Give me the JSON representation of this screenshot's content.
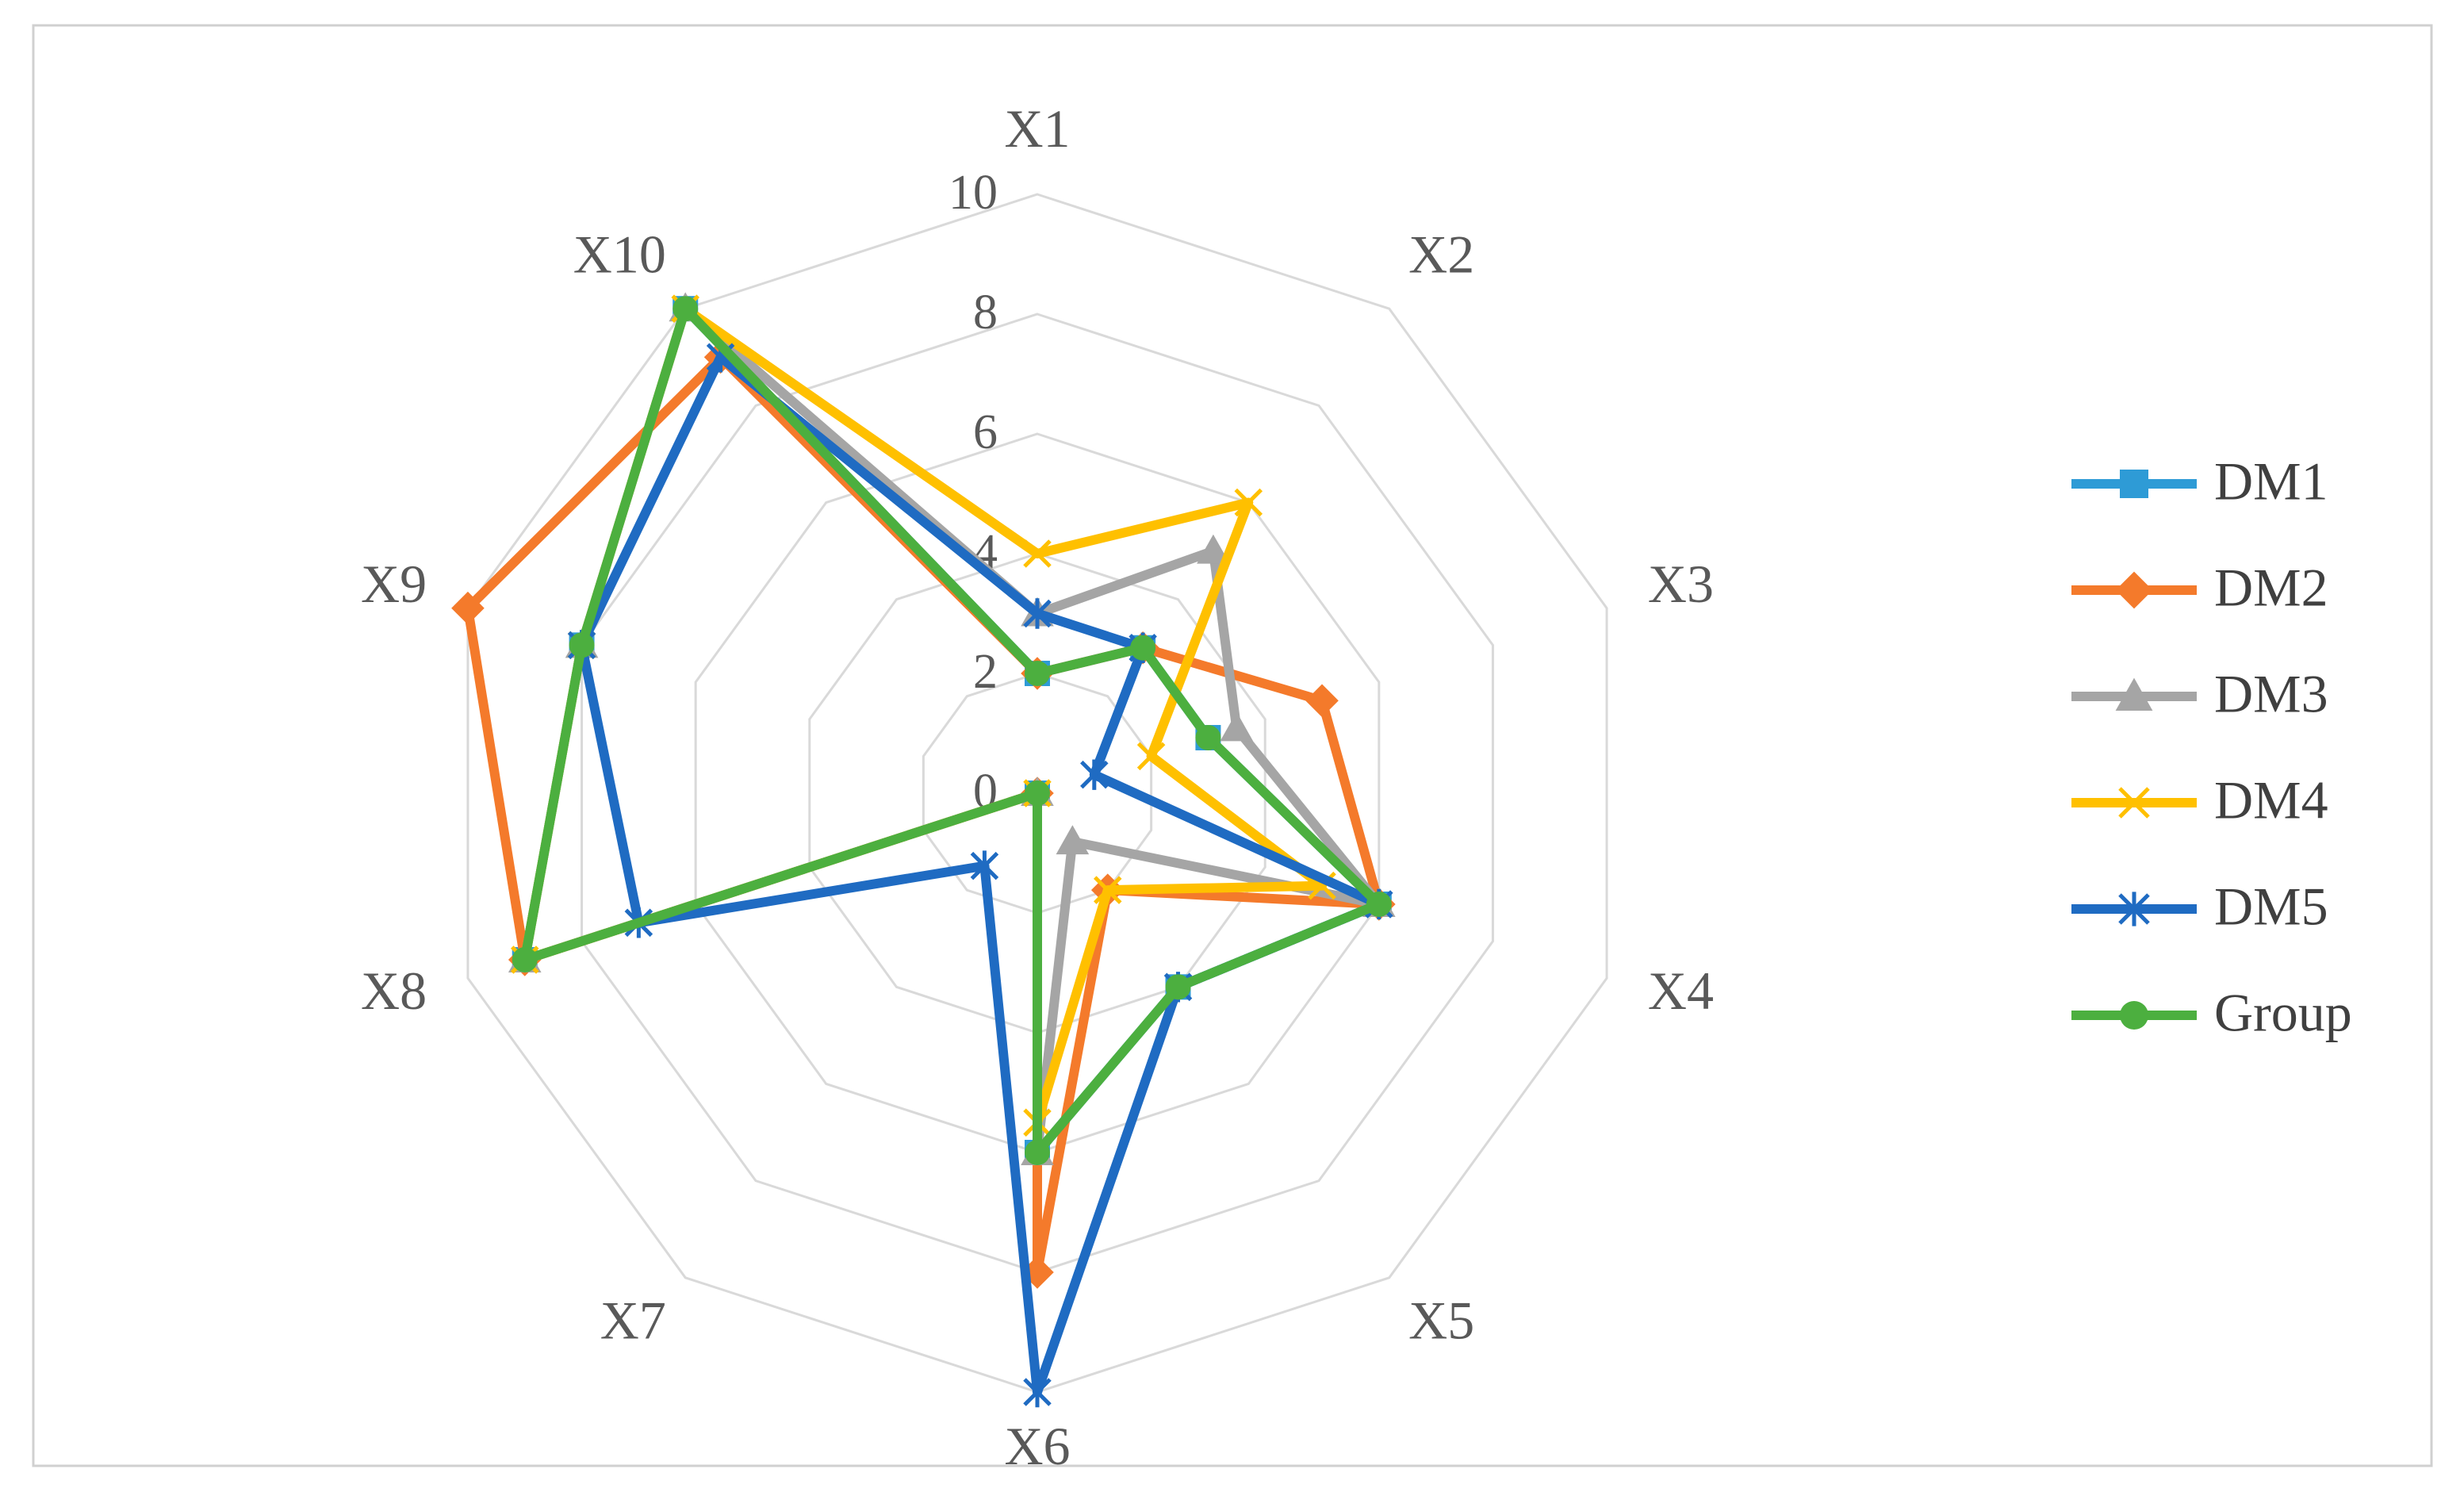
{
  "chart_data": {
    "type": "radar",
    "title": "",
    "axes": [
      "X1",
      "X2",
      "X3",
      "X4",
      "X5",
      "X6",
      "X7",
      "X8",
      "X9",
      "X10"
    ],
    "rlim": [
      0,
      10
    ],
    "ticks": [
      "0",
      "2",
      "4",
      "6",
      "8",
      "10"
    ],
    "grid": true,
    "legend_position": "right",
    "series": [
      {
        "name": "DM1",
        "color": "#2E9BD6",
        "marker": "square",
        "values": [
          2,
          3,
          3,
          6,
          4,
          6,
          0,
          9,
          8,
          10
        ]
      },
      {
        "name": "DM2",
        "color": "#F47A2B",
        "marker": "diamond",
        "values": [
          2,
          3,
          5,
          6,
          2,
          8,
          0,
          9,
          10,
          9
        ]
      },
      {
        "name": "DM3",
        "color": "#A5A5A5",
        "marker": "triangle",
        "values": [
          3,
          5,
          3.5,
          6,
          1,
          6,
          0,
          9,
          8,
          10
        ]
      },
      {
        "name": "DM4",
        "color": "#FFC000",
        "marker": "x",
        "values": [
          4,
          6,
          2,
          5,
          2,
          5.5,
          0,
          9,
          8,
          10
        ]
      },
      {
        "name": "DM5",
        "color": "#1F6BC2",
        "marker": "star",
        "values": [
          3,
          3,
          1,
          6,
          4,
          10,
          1.5,
          7,
          8,
          9
        ]
      },
      {
        "name": "Group",
        "color": "#4CAF3F",
        "marker": "circle",
        "values": [
          2,
          3,
          3,
          6,
          4,
          6,
          0,
          9,
          8,
          10
        ]
      }
    ]
  }
}
